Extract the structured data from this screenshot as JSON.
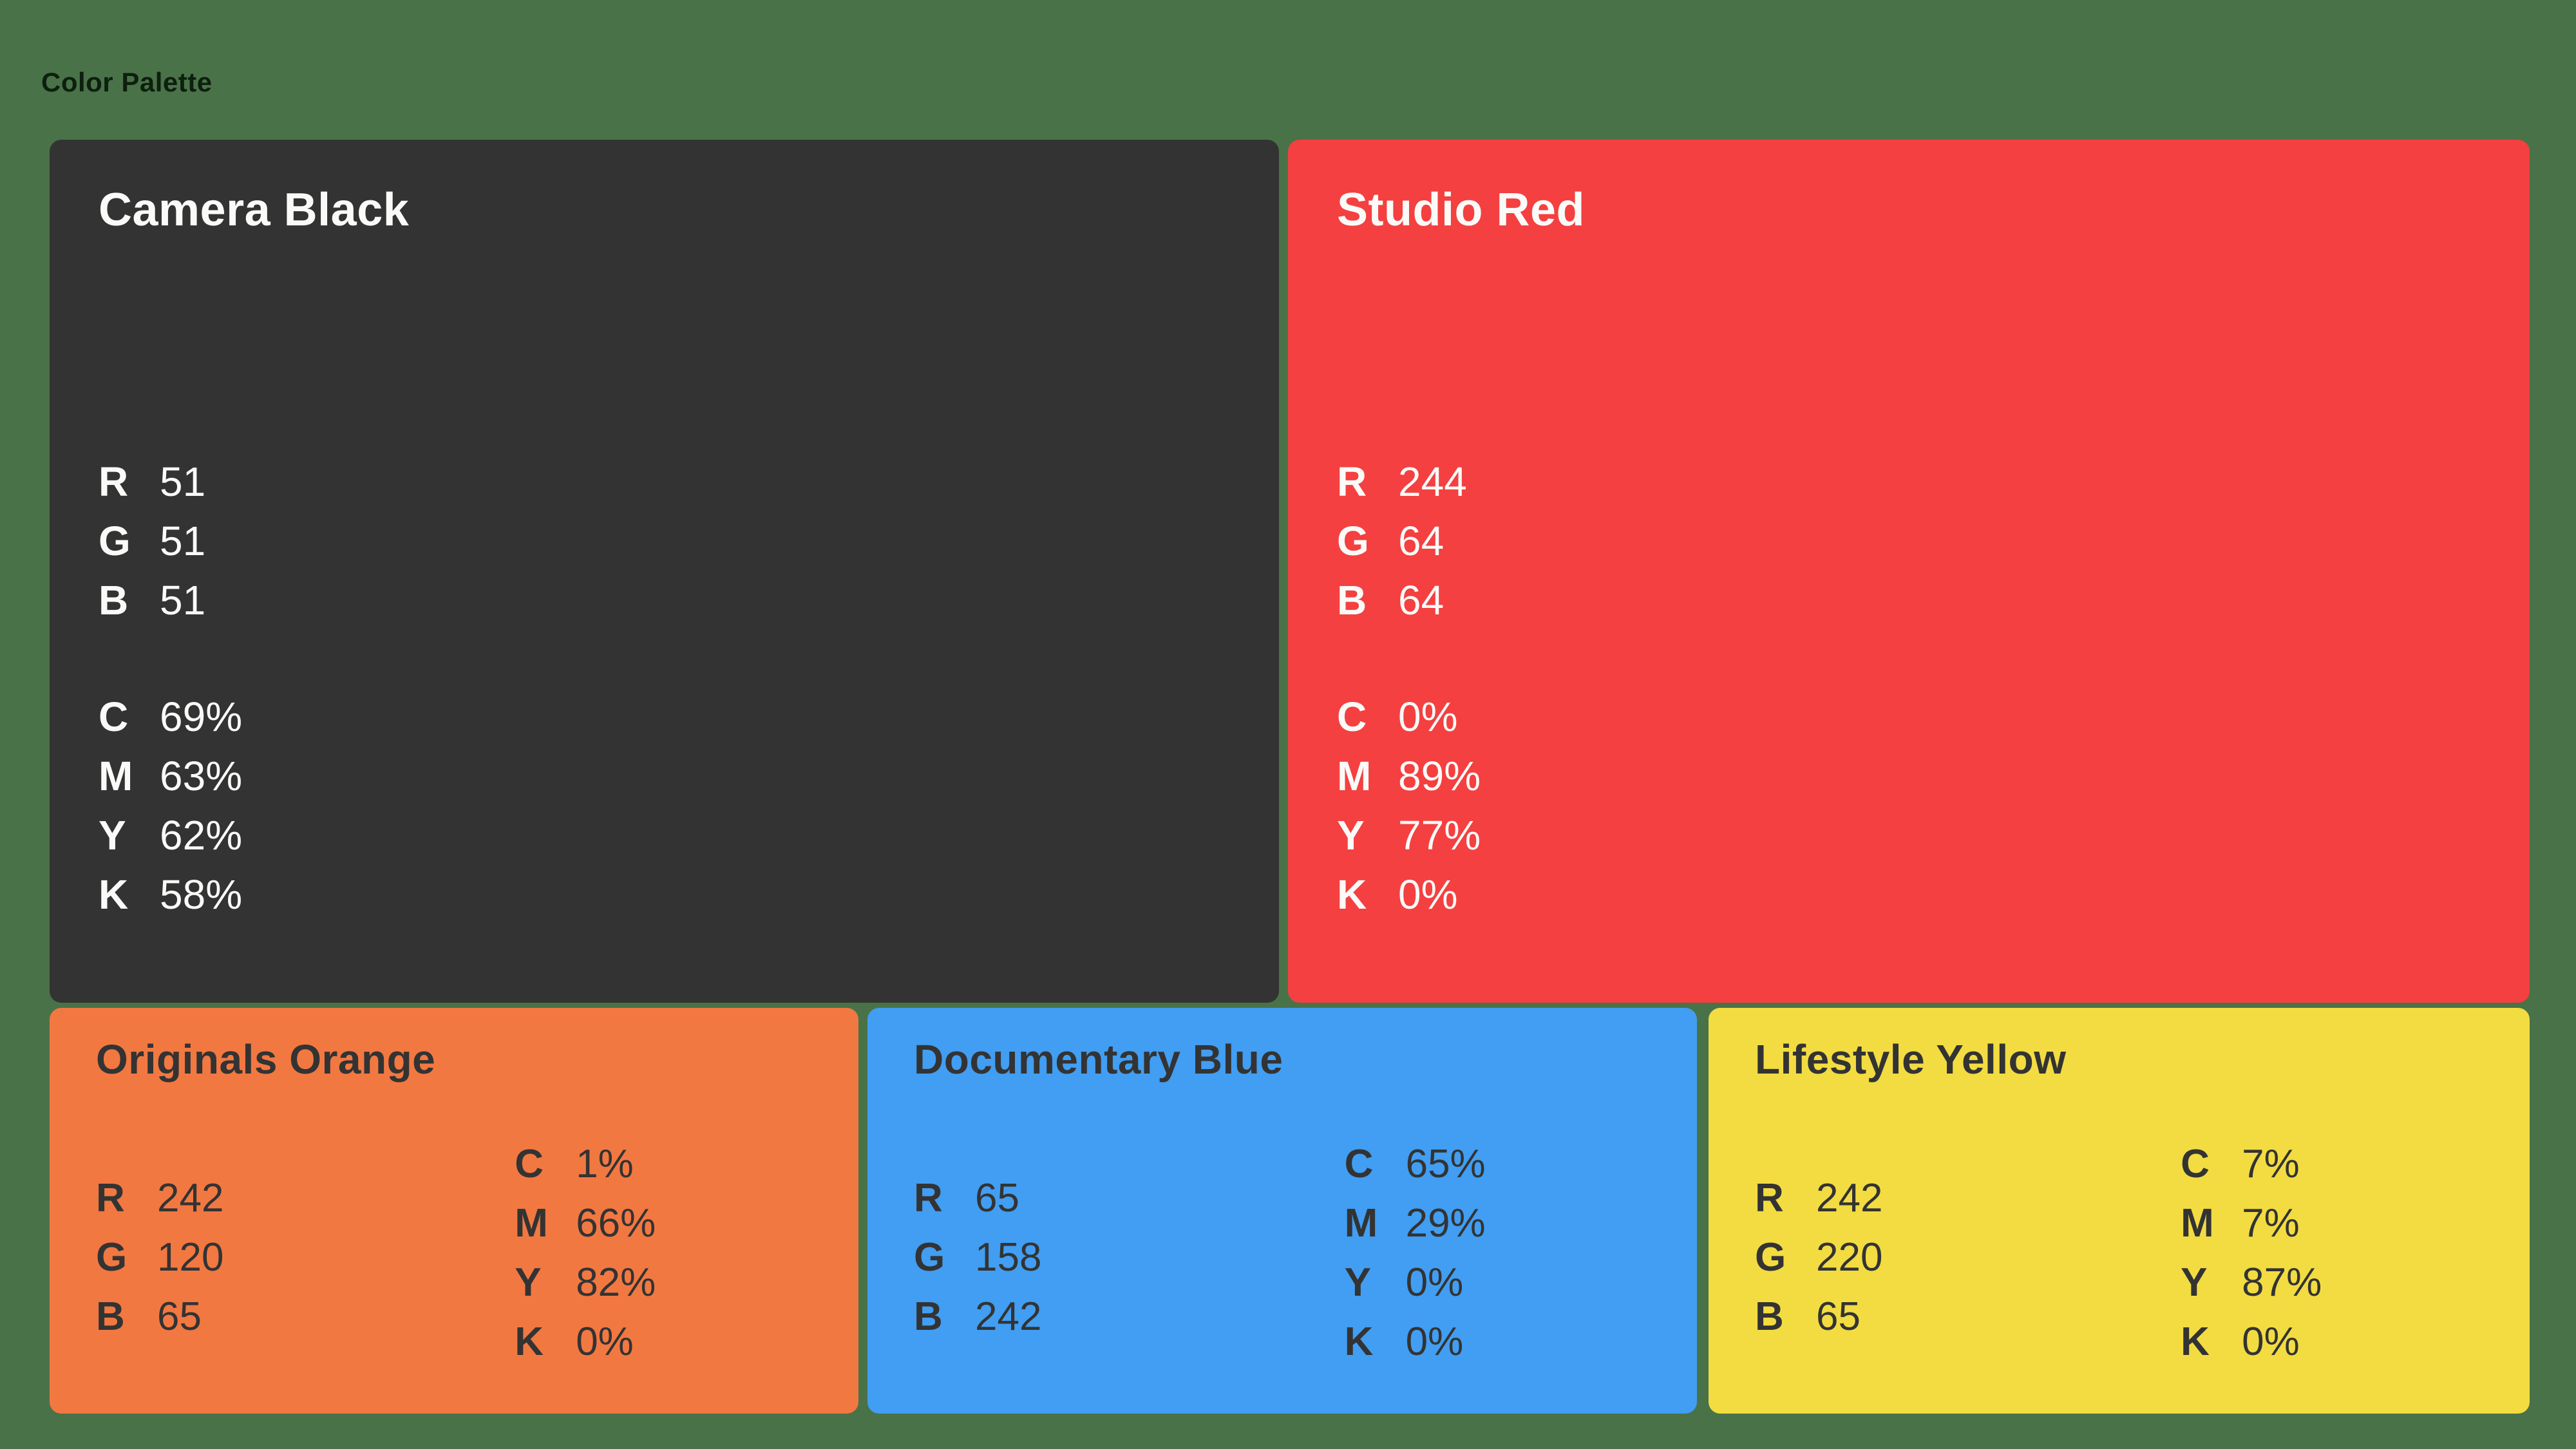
{
  "page": {
    "title": "Color Palette",
    "background": "#4A7248",
    "title_color": "#0D1F0E"
  },
  "cards": [
    {
      "title": "Camera Black",
      "background": "#333333",
      "text_color": "#FAFAF8",
      "rgb": [
        {
          "label": "R",
          "value": "51"
        },
        {
          "label": "G",
          "value": "51"
        },
        {
          "label": "B",
          "value": "51"
        }
      ],
      "cmyk": [
        {
          "label": "C",
          "value": "69%"
        },
        {
          "label": "M",
          "value": "63%"
        },
        {
          "label": "Y",
          "value": "62%"
        },
        {
          "label": "K",
          "value": "58%"
        }
      ]
    },
    {
      "title": "Studio Red",
      "background": "#F44040",
      "text_color": "#FAFAF8",
      "rgb": [
        {
          "label": "R",
          "value": "244"
        },
        {
          "label": "G",
          "value": "64"
        },
        {
          "label": "B",
          "value": "64"
        }
      ],
      "cmyk": [
        {
          "label": "C",
          "value": "0%"
        },
        {
          "label": "M",
          "value": "89%"
        },
        {
          "label": "Y",
          "value": "77%"
        },
        {
          "label": "K",
          "value": "0%"
        }
      ]
    },
    {
      "title": "Originals Orange",
      "background": "#F27841",
      "text_color": "#333333",
      "rgb": [
        {
          "label": "R",
          "value": "242"
        },
        {
          "label": "G",
          "value": "120"
        },
        {
          "label": "B",
          "value": "65"
        }
      ],
      "cmyk": [
        {
          "label": "C",
          "value": "1%"
        },
        {
          "label": "M",
          "value": "66%"
        },
        {
          "label": "Y",
          "value": "82%"
        },
        {
          "label": "K",
          "value": "0%"
        }
      ]
    },
    {
      "title": "Documentary Blue",
      "background": "#419EF2",
      "text_color": "#333333",
      "rgb": [
        {
          "label": "R",
          "value": "65"
        },
        {
          "label": "G",
          "value": "158"
        },
        {
          "label": "B",
          "value": "242"
        }
      ],
      "cmyk": [
        {
          "label": "C",
          "value": "65%"
        },
        {
          "label": "M",
          "value": "29%"
        },
        {
          "label": "Y",
          "value": "0%"
        },
        {
          "label": "K",
          "value": "0%"
        }
      ]
    },
    {
      "title": "Lifestyle Yellow",
      "background": "#F2DC41",
      "text_color": "#333333",
      "rgb": [
        {
          "label": "R",
          "value": "242"
        },
        {
          "label": "G",
          "value": "220"
        },
        {
          "label": "B",
          "value": "65"
        }
      ],
      "cmyk": [
        {
          "label": "C",
          "value": "7%"
        },
        {
          "label": "M",
          "value": "7%"
        },
        {
          "label": "Y",
          "value": "87%"
        },
        {
          "label": "K",
          "value": "0%"
        }
      ]
    }
  ]
}
